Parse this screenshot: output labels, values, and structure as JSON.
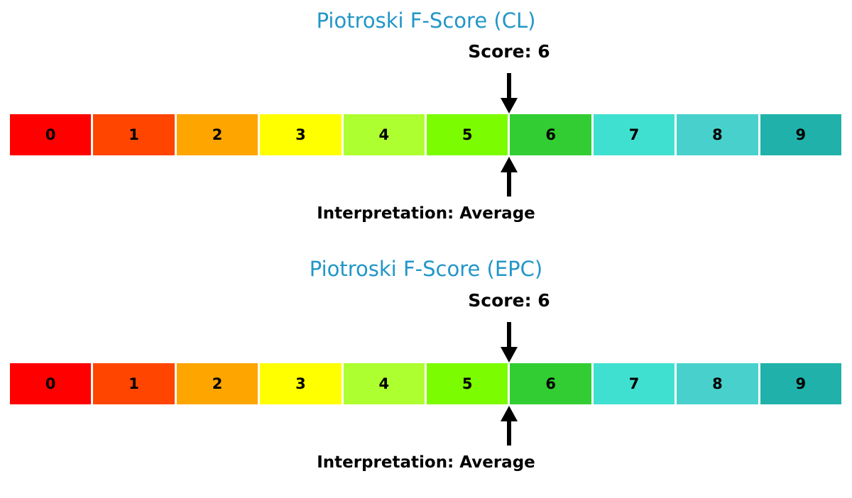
{
  "colors": {
    "title": "#2296c8",
    "arrow": "#000000",
    "cell_label": "#000000",
    "cell_border": "#ffffff",
    "background": "#ffffff"
  },
  "scale": {
    "labels": [
      "0",
      "1",
      "2",
      "3",
      "4",
      "5",
      "6",
      "7",
      "8",
      "9"
    ],
    "cell_colors": [
      "#ff0000",
      "#ff4500",
      "#ffa500",
      "#ffff00",
      "#adff2f",
      "#7cfc00",
      "#32cd32",
      "#40e0d0",
      "#48d1cc",
      "#20b2aa"
    ]
  },
  "charts": [
    {
      "title": "Piotroski F-Score (CL)",
      "score_label": "Score: 6",
      "interpretation_label": "Interpretation: Average"
    },
    {
      "title": "Piotroski F-Score (EPC)",
      "score_label": "Score: 6",
      "interpretation_label": "Interpretation: Average"
    }
  ],
  "chart_data": [
    {
      "type": "heatmap",
      "subtype": "discrete-score-scale",
      "title": "Piotroski F-Score (CL)",
      "categories": [
        "0",
        "1",
        "2",
        "3",
        "4",
        "5",
        "6",
        "7",
        "8",
        "9"
      ],
      "cell_colors": [
        "#ff0000",
        "#ff4500",
        "#ffa500",
        "#ffff00",
        "#adff2f",
        "#7cfc00",
        "#32cd32",
        "#40e0d0",
        "#48d1cc",
        "#20b2aa"
      ],
      "score": 6,
      "score_annotation": "Score: 6",
      "interpretation": "Average",
      "marker_position_on_scale": 6,
      "scale_range": [
        0,
        9
      ],
      "legend": "none",
      "grid": false
    },
    {
      "type": "heatmap",
      "subtype": "discrete-score-scale",
      "title": "Piotroski F-Score (EPC)",
      "categories": [
        "0",
        "1",
        "2",
        "3",
        "4",
        "5",
        "6",
        "7",
        "8",
        "9"
      ],
      "cell_colors": [
        "#ff0000",
        "#ff4500",
        "#ffa500",
        "#ffff00",
        "#adff2f",
        "#7cfc00",
        "#32cd32",
        "#40e0d0",
        "#48d1cc",
        "#20b2aa"
      ],
      "score": 6,
      "score_annotation": "Score: 6",
      "interpretation": "Average",
      "marker_position_on_scale": 6,
      "scale_range": [
        0,
        9
      ],
      "legend": "none",
      "grid": false
    }
  ]
}
